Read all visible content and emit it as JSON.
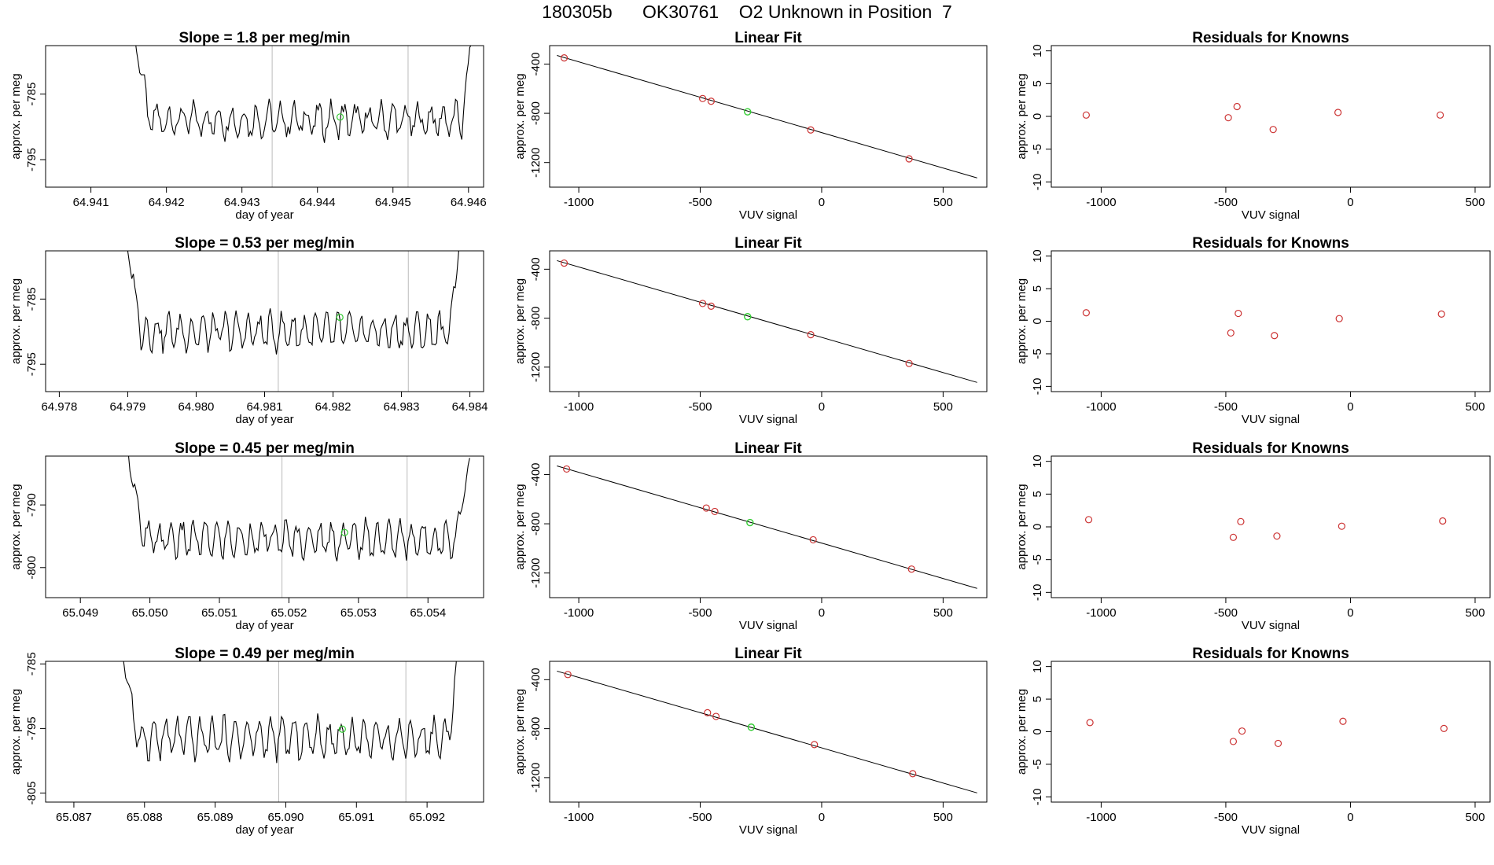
{
  "figure_title": "180305b      OK30761    O2 Unknown in Position  7",
  "colors": {
    "trace": "#000000",
    "known_point": "#cc3333",
    "unknown_point": "#33cc33",
    "fit_line": "#000000",
    "vline": "#bbbbbb",
    "axis": "#000000"
  },
  "chart_data": [
    {
      "type": "line",
      "panel": "time-series",
      "row": 1,
      "title": "Slope =  1.8  per meg/min",
      "xlabel": "day of year",
      "ylabel": "approx. per meg",
      "xlim": [
        64.9404,
        64.9462
      ],
      "ylim": [
        -799.2,
        -777.6
      ],
      "xticks": [
        64.941,
        64.942,
        64.943,
        64.944,
        64.945,
        64.946
      ],
      "xtick_labels": [
        "64.941",
        "64.942",
        "64.943",
        "64.944",
        "64.945",
        "64.946"
      ],
      "yticks": [
        -785,
        -795
      ],
      "ytick_labels": [
        "-785",
        "-795"
      ],
      "trace": {
        "x_start": 64.9415,
        "x_end": 64.9461,
        "base": -789.0,
        "amp": 2.2,
        "period": 0.000165,
        "start_level": -771,
        "end_level": -771
      },
      "vlines": [
        64.9434,
        64.9452
      ],
      "unknown_point": {
        "x": 64.9443,
        "y": -788.5
      }
    },
    {
      "type": "scatter",
      "panel": "linear-fit",
      "row": 1,
      "title": "Linear Fit",
      "xlabel": "VUV signal",
      "ylabel": "approx. per meg",
      "xlim": [
        -1120,
        680
      ],
      "ylim": [
        -1400,
        -250
      ],
      "xticks": [
        -1000,
        -500,
        0,
        500
      ],
      "xtick_labels": [
        "-1000",
        "-500",
        "0",
        "500"
      ],
      "yticks": [
        -400,
        -800,
        -1200
      ],
      "ytick_labels": [
        "-400",
        "-800",
        "-1200"
      ],
      "fit_line": {
        "x": [
          -1090,
          640
        ],
        "y": [
          -330,
          -1325
        ]
      },
      "known_points": {
        "x": [
          -1060,
          -490,
          -455,
          -45,
          360
        ],
        "y": [
          -350,
          -680,
          -702,
          -935,
          -1170
        ]
      },
      "unknown_point": {
        "x": -305,
        "y": -788
      }
    },
    {
      "type": "scatter",
      "panel": "residuals",
      "row": 1,
      "title": "Residuals for Knowns",
      "xlabel": "VUV signal",
      "ylabel": "approx. per meg",
      "xlim": [
        -1200,
        560
      ],
      "ylim": [
        -10.8,
        10.8
      ],
      "xticks": [
        -1000,
        -500,
        0,
        500
      ],
      "xtick_labels": [
        "-1000",
        "-500",
        "0",
        "500"
      ],
      "yticks": [
        10,
        5,
        0,
        -5,
        -10
      ],
      "ytick_labels": [
        "10",
        "5",
        "0",
        "-5",
        "-10"
      ],
      "points": {
        "x": [
          -1060,
          -490,
          -455,
          -310,
          -50,
          360
        ],
        "y": [
          0.2,
          -0.2,
          1.5,
          -2.0,
          0.6,
          0.2
        ]
      }
    },
    {
      "type": "line",
      "panel": "time-series",
      "row": 2,
      "title": "Slope =  0.53  per meg/min",
      "xlabel": "day of year",
      "ylabel": "approx. per meg",
      "xlim": [
        64.9778,
        64.9842
      ],
      "ylim": [
        -799.2,
        -777.6
      ],
      "xticks": [
        64.978,
        64.979,
        64.98,
        64.981,
        64.982,
        64.983,
        64.984
      ],
      "xtick_labels": [
        "64.978",
        "64.979",
        "64.980",
        "64.981",
        "64.982",
        "64.983",
        "64.984"
      ],
      "yticks": [
        -785,
        -795
      ],
      "ytick_labels": [
        "-785",
        "-795"
      ],
      "trace": {
        "x_start": 64.9789,
        "x_end": 64.9839,
        "base": -790.0,
        "amp": 2.3,
        "period": 0.000165,
        "start_level": -771,
        "end_level": -771
      },
      "vlines": [
        64.9812,
        64.9831
      ],
      "unknown_point": {
        "x": 64.9821,
        "y": -787.8
      }
    },
    {
      "type": "scatter",
      "panel": "linear-fit",
      "row": 2,
      "title": "Linear Fit",
      "xlabel": "VUV signal",
      "ylabel": "approx. per meg",
      "xlim": [
        -1120,
        680
      ],
      "ylim": [
        -1400,
        -250
      ],
      "xticks": [
        -1000,
        -500,
        0,
        500
      ],
      "xtick_labels": [
        "-1000",
        "-500",
        "0",
        "500"
      ],
      "yticks": [
        -400,
        -800,
        -1200
      ],
      "ytick_labels": [
        "-400",
        "-800",
        "-1200"
      ],
      "fit_line": {
        "x": [
          -1090,
          640
        ],
        "y": [
          -330,
          -1325
        ]
      },
      "known_points": {
        "x": [
          -1060,
          -490,
          -455,
          -45,
          360
        ],
        "y": [
          -350,
          -680,
          -702,
          -935,
          -1170
        ]
      },
      "unknown_point": {
        "x": -305,
        "y": -788
      }
    },
    {
      "type": "scatter",
      "panel": "residuals",
      "row": 2,
      "title": "Residuals for Knowns",
      "xlabel": "VUV signal",
      "ylabel": "approx. per meg",
      "xlim": [
        -1200,
        560
      ],
      "ylim": [
        -10.8,
        10.8
      ],
      "xticks": [
        -1000,
        -500,
        0,
        500
      ],
      "xtick_labels": [
        "-1000",
        "-500",
        "0",
        "500"
      ],
      "yticks": [
        10,
        5,
        0,
        -5,
        -10
      ],
      "ytick_labels": [
        "10",
        "5",
        "0",
        "-5",
        "-10"
      ],
      "points": {
        "x": [
          -1060,
          -480,
          -450,
          -305,
          -45,
          365
        ],
        "y": [
          1.3,
          -1.8,
          1.2,
          -2.2,
          0.4,
          1.1
        ]
      }
    },
    {
      "type": "line",
      "panel": "time-series",
      "row": 3,
      "title": "Slope =  0.45  per meg/min",
      "xlabel": "day of year",
      "ylabel": "approx. per meg",
      "xlim": [
        65.0485,
        65.0548
      ],
      "ylim": [
        -804.8,
        -782.2
      ],
      "xticks": [
        65.049,
        65.05,
        65.051,
        65.052,
        65.053,
        65.054
      ],
      "xtick_labels": [
        "65.049",
        "65.050",
        "65.051",
        "65.052",
        "65.053",
        "65.054"
      ],
      "yticks": [
        -790,
        -800
      ],
      "ytick_labels": [
        "-790",
        "-800"
      ],
      "trace": {
        "x_start": 65.0496,
        "x_end": 65.0546,
        "base": -795.5,
        "amp": 2.4,
        "period": 0.000165,
        "start_level": -776,
        "end_level": -782.5
      },
      "vlines": [
        65.0519,
        65.0537
      ],
      "unknown_point": {
        "x": 65.0528,
        "y": -794.4
      }
    },
    {
      "type": "scatter",
      "panel": "linear-fit",
      "row": 3,
      "title": "Linear Fit",
      "xlabel": "VUV signal",
      "ylabel": "approx. per meg",
      "xlim": [
        -1120,
        680
      ],
      "ylim": [
        -1400,
        -250
      ],
      "xticks": [
        -1000,
        -500,
        0,
        500
      ],
      "xtick_labels": [
        "-1000",
        "-500",
        "0",
        "500"
      ],
      "yticks": [
        -400,
        -800,
        -1200
      ],
      "ytick_labels": [
        "-400",
        "-800",
        "-1200"
      ],
      "fit_line": {
        "x": [
          -1090,
          640
        ],
        "y": [
          -330,
          -1325
        ]
      },
      "known_points": {
        "x": [
          -1050,
          -475,
          -440,
          -35,
          370
        ],
        "y": [
          -355,
          -672,
          -700,
          -930,
          -1168
        ]
      },
      "unknown_point": {
        "x": -295,
        "y": -790
      }
    },
    {
      "type": "scatter",
      "panel": "residuals",
      "row": 3,
      "title": "Residuals for Knowns",
      "xlabel": "VUV signal",
      "ylabel": "approx. per meg",
      "xlim": [
        -1200,
        560
      ],
      "ylim": [
        -10.8,
        10.8
      ],
      "xticks": [
        -1000,
        -500,
        0,
        500
      ],
      "xtick_labels": [
        "-1000",
        "-500",
        "0",
        "500"
      ],
      "points": {
        "x": [
          -1050,
          -470,
          -440,
          -295,
          -35,
          370
        ],
        "y": [
          1.1,
          -1.6,
          0.8,
          -1.4,
          0.1,
          0.9
        ]
      },
      "yticks": [
        10,
        5,
        0,
        -5,
        -10
      ],
      "ytick_labels": [
        "10",
        "5",
        "0",
        "-5",
        "-10"
      ]
    },
    {
      "type": "line",
      "panel": "time-series",
      "row": 4,
      "title": "Slope =  0.49  per meg/min",
      "xlabel": "day of year",
      "ylabel": "approx. per meg",
      "xlim": [
        65.0866,
        65.0928
      ],
      "ylim": [
        -806.4,
        -784.6
      ],
      "xticks": [
        65.087,
        65.088,
        65.089,
        65.09,
        65.091,
        65.092
      ],
      "xtick_labels": [
        "65.087",
        "65.088",
        "65.089",
        "65.090",
        "65.091",
        "65.092"
      ],
      "yticks": [
        -785,
        -795,
        -805
      ],
      "ytick_labels": [
        "-785",
        "-795",
        "-805"
      ],
      "trace": {
        "x_start": 65.0876,
        "x_end": 65.0925,
        "base": -796.5,
        "amp": 2.6,
        "period": 0.000165,
        "start_level": -777,
        "end_level": -777
      },
      "vlines": [
        65.0899,
        65.0917
      ],
      "unknown_point": {
        "x": 65.0908,
        "y": -795.1
      }
    },
    {
      "type": "scatter",
      "panel": "linear-fit",
      "row": 4,
      "title": "Linear Fit",
      "xlabel": "VUV signal",
      "ylabel": "approx. per meg",
      "xlim": [
        -1120,
        680
      ],
      "ylim": [
        -1400,
        -250
      ],
      "xticks": [
        -1000,
        -500,
        0,
        500
      ],
      "xtick_labels": [
        "-1000",
        "-500",
        "0",
        "500"
      ],
      "yticks": [
        -400,
        -800,
        -1200
      ],
      "ytick_labels": [
        "-400",
        "-800",
        "-1200"
      ],
      "fit_line": {
        "x": [
          -1090,
          640
        ],
        "y": [
          -330,
          -1325
        ]
      },
      "known_points": {
        "x": [
          -1045,
          -470,
          -435,
          -30,
          375
        ],
        "y": [
          -358,
          -670,
          -700,
          -930,
          -1168
        ]
      },
      "unknown_point": {
        "x": -290,
        "y": -788
      }
    },
    {
      "type": "scatter",
      "panel": "residuals",
      "row": 4,
      "title": "Residuals for Knowns",
      "xlabel": "VUV signal",
      "ylabel": "approx. per meg",
      "xlim": [
        -1200,
        560
      ],
      "ylim": [
        -10.8,
        10.8
      ],
      "xticks": [
        -1000,
        -500,
        0,
        500
      ],
      "xtick_labels": [
        "-1000",
        "-500",
        "0",
        "500"
      ],
      "yticks": [
        10,
        5,
        0,
        -5,
        -10
      ],
      "ytick_labels": [
        "10",
        "5",
        "0",
        "-5",
        "-10"
      ],
      "points": {
        "x": [
          -1045,
          -470,
          -435,
          -290,
          -30,
          375
        ],
        "y": [
          1.4,
          -1.5,
          0.1,
          -1.8,
          1.6,
          0.5
        ]
      }
    }
  ]
}
